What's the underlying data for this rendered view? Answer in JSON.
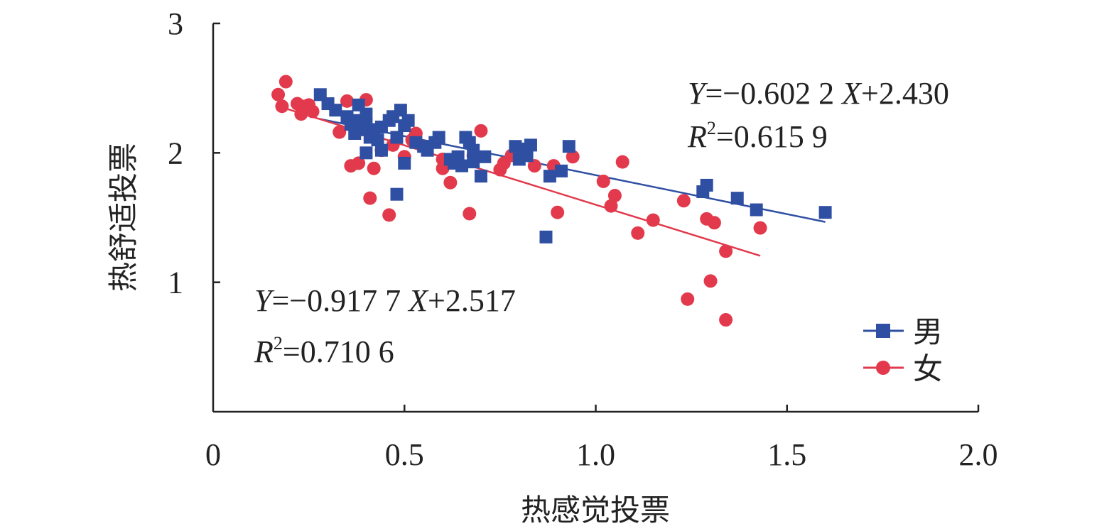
{
  "chart_data": {
    "type": "scatter",
    "title": "",
    "xlabel": "热感觉投票",
    "ylabel": "热舒适投票",
    "xlim": [
      0,
      2.0
    ],
    "ylim": [
      0,
      3
    ],
    "x_ticks": [
      {
        "value": 0,
        "label": "0"
      },
      {
        "value": 0.5,
        "label": "0.5"
      },
      {
        "value": 1.0,
        "label": "1.0"
      },
      {
        "value": 1.5,
        "label": "1.5"
      },
      {
        "value": 2.0,
        "label": "2.0"
      }
    ],
    "y_ticks": [
      {
        "value": 1,
        "label": "1"
      },
      {
        "value": 2,
        "label": "2"
      },
      {
        "value": 3,
        "label": "3"
      }
    ],
    "grid": false,
    "legend_position": "bottom-right",
    "series": [
      {
        "name": "男",
        "color": "#2f4fa3",
        "marker": "square",
        "fit": {
          "slope": -0.6022,
          "intercept": 2.43,
          "x_range": [
            0.28,
            1.6
          ]
        },
        "equation": {
          "y_var": "Y",
          "x_var": "X",
          "rhs": "=−0.602 2",
          "tail": "+2.430",
          "r_var": "R",
          "r_exp": "2",
          "r_value": "=0.615 9"
        },
        "points": [
          [
            0.28,
            2.45
          ],
          [
            0.3,
            2.38
          ],
          [
            0.32,
            2.33
          ],
          [
            0.35,
            2.28
          ],
          [
            0.36,
            2.22
          ],
          [
            0.37,
            2.15
          ],
          [
            0.38,
            2.37
          ],
          [
            0.38,
            2.25
          ],
          [
            0.39,
            2.18
          ],
          [
            0.4,
            2.3
          ],
          [
            0.4,
            2.22
          ],
          [
            0.41,
            2.12
          ],
          [
            0.42,
            2.18
          ],
          [
            0.43,
            2.1
          ],
          [
            0.44,
            2.02
          ],
          [
            0.4,
            2.0
          ],
          [
            0.44,
            2.2
          ],
          [
            0.46,
            2.25
          ],
          [
            0.47,
            2.28
          ],
          [
            0.48,
            2.12
          ],
          [
            0.49,
            2.33
          ],
          [
            0.5,
            2.21
          ],
          [
            0.51,
            2.25
          ],
          [
            0.53,
            2.08
          ],
          [
            0.55,
            2.05
          ],
          [
            0.56,
            2.02
          ],
          [
            0.58,
            2.08
          ],
          [
            0.59,
            2.12
          ],
          [
            0.62,
            1.95
          ],
          [
            0.63,
            1.92
          ],
          [
            0.64,
            1.97
          ],
          [
            0.65,
            1.9
          ],
          [
            0.66,
            2.12
          ],
          [
            0.67,
            2.08
          ],
          [
            0.68,
            2.02
          ],
          [
            0.68,
            1.93
          ],
          [
            0.7,
            1.82
          ],
          [
            0.71,
            1.97
          ],
          [
            0.48,
            1.68
          ],
          [
            0.5,
            1.92
          ],
          [
            0.79,
            2.05
          ],
          [
            0.8,
            1.95
          ],
          [
            0.81,
            2.03
          ],
          [
            0.82,
            1.98
          ],
          [
            0.83,
            2.06
          ],
          [
            0.87,
            1.35
          ],
          [
            0.88,
            1.82
          ],
          [
            0.91,
            1.86
          ],
          [
            0.93,
            2.05
          ],
          [
            1.28,
            1.7
          ],
          [
            1.29,
            1.75
          ],
          [
            1.37,
            1.65
          ],
          [
            1.42,
            1.56
          ],
          [
            1.6,
            1.54
          ]
        ]
      },
      {
        "name": "女",
        "color": "#e23a4c",
        "marker": "circle",
        "fit": {
          "slope": -0.9177,
          "intercept": 2.517,
          "x_range": [
            0.17,
            1.43
          ]
        },
        "equation": {
          "y_var": "Y",
          "x_var": "X",
          "rhs": "=−0.917 7",
          "tail": "+2.517",
          "r_var": "R",
          "r_exp": "2",
          "r_value": "=0.710 6"
        },
        "points": [
          [
            0.17,
            2.45
          ],
          [
            0.18,
            2.36
          ],
          [
            0.19,
            2.55
          ],
          [
            0.22,
            2.38
          ],
          [
            0.23,
            2.3
          ],
          [
            0.24,
            2.36
          ],
          [
            0.25,
            2.37
          ],
          [
            0.26,
            2.32
          ],
          [
            0.33,
            2.16
          ],
          [
            0.35,
            2.4
          ],
          [
            0.36,
            1.9
          ],
          [
            0.38,
            1.92
          ],
          [
            0.39,
            2.18
          ],
          [
            0.4,
            2.41
          ],
          [
            0.41,
            1.65
          ],
          [
            0.42,
            1.88
          ],
          [
            0.44,
            2.02
          ],
          [
            0.46,
            1.52
          ],
          [
            0.47,
            2.06
          ],
          [
            0.5,
            1.97
          ],
          [
            0.52,
            2.1
          ],
          [
            0.53,
            2.15
          ],
          [
            0.55,
            2.05
          ],
          [
            0.6,
            1.95
          ],
          [
            0.6,
            1.88
          ],
          [
            0.62,
            1.77
          ],
          [
            0.67,
            1.53
          ],
          [
            0.68,
            1.98
          ],
          [
            0.7,
            2.17
          ],
          [
            0.75,
            1.87
          ],
          [
            0.76,
            1.92
          ],
          [
            0.78,
            1.98
          ],
          [
            0.84,
            1.9
          ],
          [
            0.89,
            1.9
          ],
          [
            0.9,
            1.54
          ],
          [
            0.94,
            1.97
          ],
          [
            1.02,
            1.78
          ],
          [
            1.04,
            1.59
          ],
          [
            1.05,
            1.67
          ],
          [
            1.07,
            1.93
          ],
          [
            1.11,
            1.38
          ],
          [
            1.15,
            1.48
          ],
          [
            1.23,
            1.63
          ],
          [
            1.24,
            0.87
          ],
          [
            1.29,
            1.49
          ],
          [
            1.3,
            1.01
          ],
          [
            1.31,
            1.46
          ],
          [
            1.34,
            0.71
          ],
          [
            1.34,
            1.24
          ],
          [
            1.43,
            1.42
          ]
        ]
      }
    ]
  }
}
